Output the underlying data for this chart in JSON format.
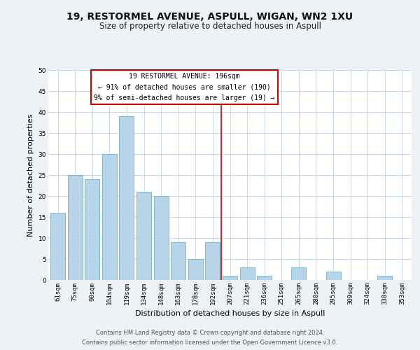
{
  "title": "19, RESTORMEL AVENUE, ASPULL, WIGAN, WN2 1XU",
  "subtitle": "Size of property relative to detached houses in Aspull",
  "xlabel": "Distribution of detached houses by size in Aspull",
  "ylabel": "Number of detached properties",
  "categories": [
    "61sqm",
    "75sqm",
    "90sqm",
    "104sqm",
    "119sqm",
    "134sqm",
    "148sqm",
    "163sqm",
    "178sqm",
    "192sqm",
    "207sqm",
    "221sqm",
    "236sqm",
    "251sqm",
    "265sqm",
    "280sqm",
    "295sqm",
    "309sqm",
    "324sqm",
    "338sqm",
    "353sqm"
  ],
  "values": [
    16,
    25,
    24,
    30,
    39,
    21,
    20,
    9,
    5,
    9,
    1,
    3,
    1,
    0,
    3,
    0,
    2,
    0,
    0,
    1,
    0
  ],
  "bar_color": "#b8d4e8",
  "bar_edge_color": "#7aafc8",
  "ylim": [
    0,
    50
  ],
  "yticks": [
    0,
    5,
    10,
    15,
    20,
    25,
    30,
    35,
    40,
    45,
    50
  ],
  "vline_x": 9.5,
  "vline_color": "#cc0000",
  "annotation_text": "19 RESTORMEL AVENUE: 196sqm\n← 91% of detached houses are smaller (190)\n9% of semi-detached houses are larger (19) →",
  "annotation_box_color": "#ffffff",
  "annotation_box_edge": "#cc0000",
  "footer_line1": "Contains HM Land Registry data © Crown copyright and database right 2024.",
  "footer_line2": "Contains public sector information licensed under the Open Government Licence v3.0.",
  "bg_color": "#eef2f7",
  "plot_bg_color": "#ffffff",
  "grid_color": "#ccd8e8",
  "title_fontsize": 10,
  "subtitle_fontsize": 8.5,
  "label_fontsize": 8,
  "tick_fontsize": 6.5,
  "annot_fontsize": 7,
  "footer_fontsize": 6
}
